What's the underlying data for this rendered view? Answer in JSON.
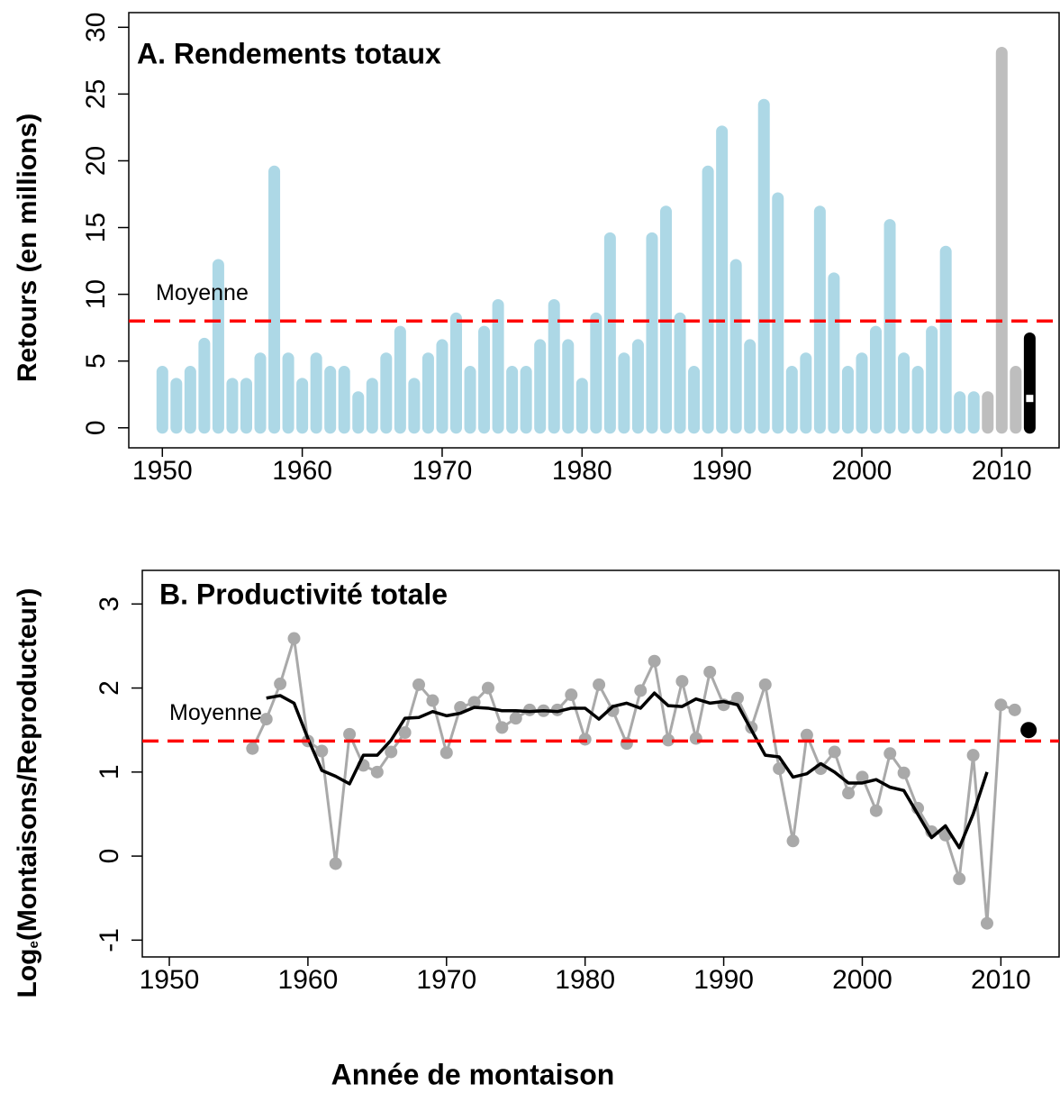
{
  "chart_data": [
    {
      "type": "bar",
      "title": "A. Rendements totaux",
      "ylabel": [
        "Retours (en millions)"
      ],
      "xlim": [
        1947.6,
        2014.1
      ],
      "xticks": [
        1950,
        1960,
        1970,
        1980,
        1990,
        2000,
        2010
      ],
      "ylim": [
        -1.5,
        31.1
      ],
      "yticks": [
        0,
        5,
        10,
        15,
        20,
        25,
        30
      ],
      "grid": false,
      "series": [
        {
          "color": "#add8e6",
          "x": [
            1950,
            1951,
            1952,
            1953,
            1954,
            1955,
            1956,
            1957,
            1958,
            1959,
            1960,
            1961,
            1962,
            1963,
            1964,
            1965,
            1966,
            1967,
            1968,
            1969,
            1970,
            1971,
            1972,
            1973,
            1974,
            1975,
            1976,
            1977,
            1978,
            1979,
            1980,
            1981,
            1982,
            1983,
            1984,
            1985,
            1986,
            1987,
            1988,
            1989,
            1990,
            1991,
            1992,
            1993,
            1994,
            1995,
            1996,
            1997,
            1998,
            1999,
            2000,
            2001,
            2002,
            2003,
            2004,
            2005,
            2006,
            2007,
            2008
          ],
          "values": [
            4.2,
            3.3,
            4.2,
            6.3,
            12.2,
            3.3,
            3.3,
            5.2,
            19.2,
            5.2,
            3.3,
            5.2,
            4.2,
            4.2,
            2.3,
            3.3,
            5.2,
            7.2,
            3.3,
            5.2,
            6.2,
            8.2,
            4.2,
            7.2,
            9.2,
            4.2,
            4.2,
            6.2,
            9.2,
            6.2,
            3.3,
            8.2,
            14.2,
            5.2,
            6.2,
            14.2,
            16.2,
            8.2,
            4.2,
            19.2,
            22.2,
            12.2,
            6.2,
            24.2,
            17.2,
            4.2,
            5.2,
            16.2,
            11.2,
            4.2,
            5.2,
            7.2,
            15.2,
            5.2,
            4.2,
            7.2,
            13.2,
            2.3,
            2.3
          ]
        },
        {
          "color": "#bebebe",
          "x": [
            2009,
            2010,
            2011
          ],
          "values": [
            2.3,
            28.1,
            4.2
          ]
        }
      ],
      "range": {
        "color": "#000000",
        "x": 2012,
        "low": 0,
        "high": 6.7,
        "value": 2.2
      },
      "mean": {
        "label": "Moyenne",
        "value": 8,
        "color": "#ff0000"
      }
    },
    {
      "type": "line",
      "title": "B. Productivité totale",
      "ylabel": [
        "Log",
        "e",
        "(Montaisons/Reproducteur)"
      ],
      "xlabel": "Année de montaison",
      "xlim": [
        1948.05,
        2014.2
      ],
      "xticks": [
        1950,
        1960,
        1970,
        1980,
        1990,
        2000,
        2010
      ],
      "ylim": [
        -1.2,
        3.4
      ],
      "yticks": [
        -1,
        0,
        1,
        2,
        3
      ],
      "grid": false,
      "series": [
        {
          "color": "#a9a9a9",
          "line": true,
          "markers": true,
          "x": [
            1956,
            1957,
            1958,
            1959,
            1960,
            1961,
            1962,
            1963,
            1964,
            1965,
            1966,
            1967,
            1968,
            1969,
            1970,
            1971,
            1972,
            1973,
            1974,
            1975,
            1976,
            1977,
            1978,
            1979,
            1980,
            1981,
            1982,
            1983,
            1984,
            1985,
            1986,
            1987,
            1988,
            1989,
            1990,
            1991,
            1992,
            1993,
            1994,
            1995,
            1996,
            1997,
            1998,
            1999,
            2000,
            2001,
            2002,
            2003,
            2004,
            2005,
            2006,
            2007,
            2008,
            2009,
            2010,
            2011
          ],
          "values": [
            1.28,
            1.63,
            2.05,
            2.59,
            1.37,
            1.25,
            -0.09,
            1.45,
            1.08,
            1.0,
            1.24,
            1.47,
            2.04,
            1.85,
            1.23,
            1.77,
            1.83,
            2.0,
            1.53,
            1.64,
            1.74,
            1.73,
            1.74,
            1.92,
            1.39,
            2.04,
            1.73,
            1.34,
            1.97,
            2.32,
            1.38,
            2.08,
            1.4,
            2.19,
            1.8,
            1.88,
            1.53,
            2.04,
            1.04,
            0.18,
            1.44,
            1.04,
            1.24,
            0.75,
            0.94,
            0.54,
            1.22,
            0.99,
            0.57,
            0.29,
            0.25,
            -0.27,
            1.2,
            -0.8,
            1.8,
            1.74
          ]
        },
        {
          "color": "#000000",
          "line": true,
          "markers": false,
          "x": [
            1957,
            1958,
            1959,
            1960,
            1961,
            1962,
            1963,
            1964,
            1965,
            1966,
            1967,
            1968,
            1969,
            1970,
            1971,
            1972,
            1973,
            1974,
            1975,
            1976,
            1977,
            1978,
            1979,
            1980,
            1981,
            1982,
            1983,
            1984,
            1985,
            1986,
            1987,
            1988,
            1989,
            1990,
            1991,
            1992,
            1993,
            1994,
            1995,
            1996,
            1997,
            1998,
            1999,
            2000,
            2001,
            2002,
            2003,
            2004,
            2005,
            2006,
            2007,
            2008,
            2009
          ],
          "values": [
            1.88,
            1.91,
            1.82,
            1.4,
            1.02,
            0.95,
            0.86,
            1.2,
            1.2,
            1.38,
            1.64,
            1.65,
            1.72,
            1.67,
            1.7,
            1.77,
            1.76,
            1.73,
            1.73,
            1.72,
            1.73,
            1.72,
            1.76,
            1.76,
            1.63,
            1.78,
            1.82,
            1.76,
            1.94,
            1.79,
            1.78,
            1.87,
            1.82,
            1.84,
            1.8,
            1.5,
            1.2,
            1.18,
            0.94,
            0.98,
            1.1,
            1.0,
            0.87,
            0.87,
            0.91,
            0.82,
            0.78,
            0.5,
            0.22,
            0.36,
            0.1,
            0.5,
            1.0
          ]
        },
        {
          "color": "#000000",
          "line": false,
          "markers": true,
          "x": [
            2012
          ],
          "values": [
            1.5
          ]
        }
      ],
      "mean": {
        "label": "Moyenne",
        "value": 1.37,
        "color": "#ff0000"
      }
    }
  ]
}
